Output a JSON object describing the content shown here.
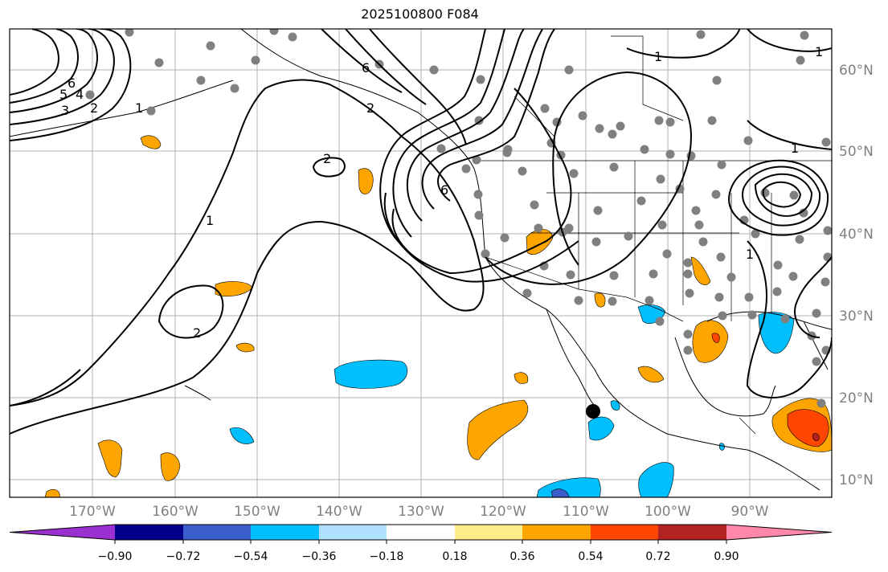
{
  "title": "2025100800 F084",
  "map": {
    "lon_labels": [
      "170°W",
      "160°W",
      "150°W",
      "140°W",
      "130°W",
      "120°W",
      "110°W",
      "100°W",
      "90°W"
    ],
    "lat_labels": [
      "60°N",
      "50°N",
      "40°N",
      "30°N",
      "20°N",
      "10°N"
    ],
    "contour_labels": [
      "6",
      "5",
      "4",
      "3",
      "2",
      "1",
      "2",
      "6",
      "2",
      "1",
      "2",
      "1",
      "1",
      "1",
      "6",
      "1"
    ]
  },
  "colorbar": {
    "ticks": [
      "−0.90",
      "−0.72",
      "−0.54",
      "−0.36",
      "−0.18",
      "0.18",
      "0.36",
      "0.54",
      "0.72",
      "0.90"
    ],
    "colors": [
      "#9b30d0",
      "#00008b",
      "#3a5fcd",
      "#00bfff",
      "#b0e2ff",
      "#ffffff",
      "#ffec8b",
      "#ffa500",
      "#ff4500",
      "#b22222",
      "#ff88aa"
    ]
  }
}
